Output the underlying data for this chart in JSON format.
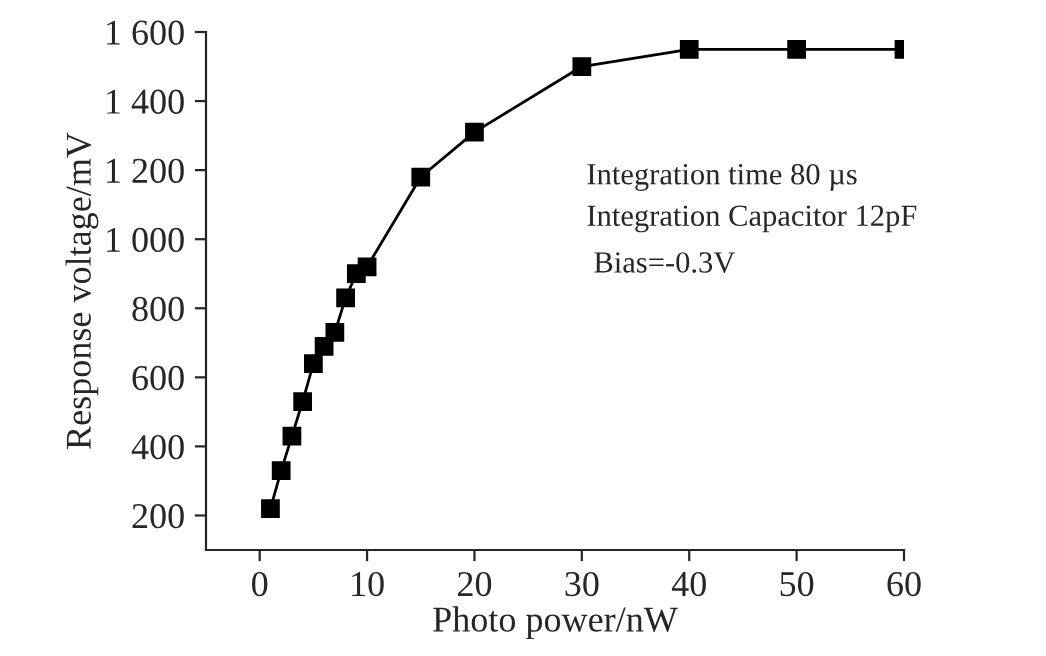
{
  "chart_data": {
    "type": "line",
    "xlabel": "Photo power/nW",
    "ylabel": "Response voltage/mV",
    "x": [
      1,
      2,
      3,
      4,
      5,
      6,
      7,
      8,
      9,
      10,
      15,
      20,
      30,
      40,
      50,
      60
    ],
    "series": [
      {
        "color": "#000000",
        "values": [
          220,
          330,
          430,
          530,
          640,
          690,
          730,
          830,
          900,
          920,
          1180,
          1310,
          1500,
          1550,
          1550,
          1550
        ]
      }
    ],
    "xlim": [
      -5,
      60
    ],
    "xticks": [
      0,
      10,
      20,
      30,
      40,
      50,
      60
    ],
    "ylim": [
      100,
      1600
    ],
    "yticks": [
      200,
      400,
      600,
      800,
      {
        "value": 1000,
        "label": "1 000"
      },
      {
        "value": 1200,
        "label": "1 200"
      },
      {
        "value": 1400,
        "label": "1 400"
      },
      {
        "value": 1600,
        "label": "1 600"
      }
    ],
    "marker": "square",
    "line_style": "solid",
    "grid": false,
    "legend": false,
    "annotations": [
      "Integration time 80 µs",
      "Integration Capacitor 12pF",
      "Bias=-0.3V"
    ]
  }
}
